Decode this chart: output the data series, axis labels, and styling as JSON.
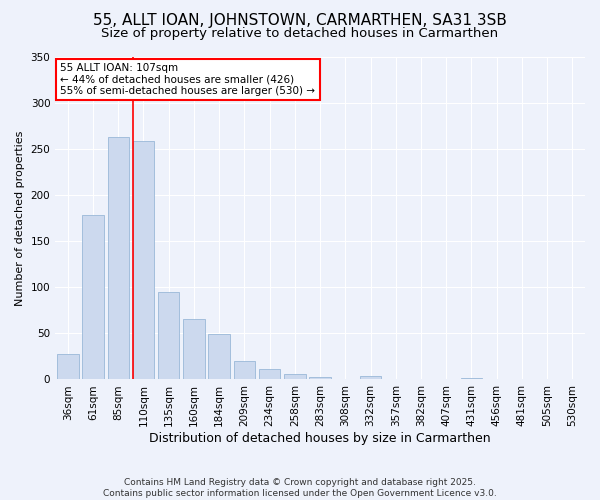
{
  "title": "55, ALLT IOAN, JOHNSTOWN, CARMARTHEN, SA31 3SB",
  "subtitle": "Size of property relative to detached houses in Carmarthen",
  "xlabel": "Distribution of detached houses by size in Carmarthen",
  "ylabel": "Number of detached properties",
  "bar_color": "#ccd9ee",
  "bar_edge_color": "#9ab8d8",
  "categories": [
    "36sqm",
    "61sqm",
    "85sqm",
    "110sqm",
    "135sqm",
    "160sqm",
    "184sqm",
    "209sqm",
    "234sqm",
    "258sqm",
    "283sqm",
    "308sqm",
    "332sqm",
    "357sqm",
    "382sqm",
    "407sqm",
    "431sqm",
    "456sqm",
    "481sqm",
    "505sqm",
    "530sqm"
  ],
  "values": [
    28,
    178,
    263,
    258,
    95,
    65,
    49,
    20,
    11,
    6,
    3,
    0,
    4,
    0,
    0,
    0,
    2,
    0,
    0,
    1,
    0
  ],
  "ylim": [
    0,
    350
  ],
  "yticks": [
    0,
    50,
    100,
    150,
    200,
    250,
    300,
    350
  ],
  "red_line_bar_index": 3,
  "annotation_title": "55 ALLT IOAN: 107sqm",
  "annotation_line1": "← 44% of detached houses are smaller (426)",
  "annotation_line2": "55% of semi-detached houses are larger (530) →",
  "footer1": "Contains HM Land Registry data © Crown copyright and database right 2025.",
  "footer2": "Contains public sector information licensed under the Open Government Licence v3.0.",
  "background_color": "#eef2fb",
  "plot_background": "#eef2fb",
  "grid_color": "#ffffff",
  "title_fontsize": 11,
  "subtitle_fontsize": 9.5,
  "xlabel_fontsize": 9,
  "ylabel_fontsize": 8,
  "tick_fontsize": 7.5,
  "footer_fontsize": 6.5,
  "annot_fontsize": 7.5
}
